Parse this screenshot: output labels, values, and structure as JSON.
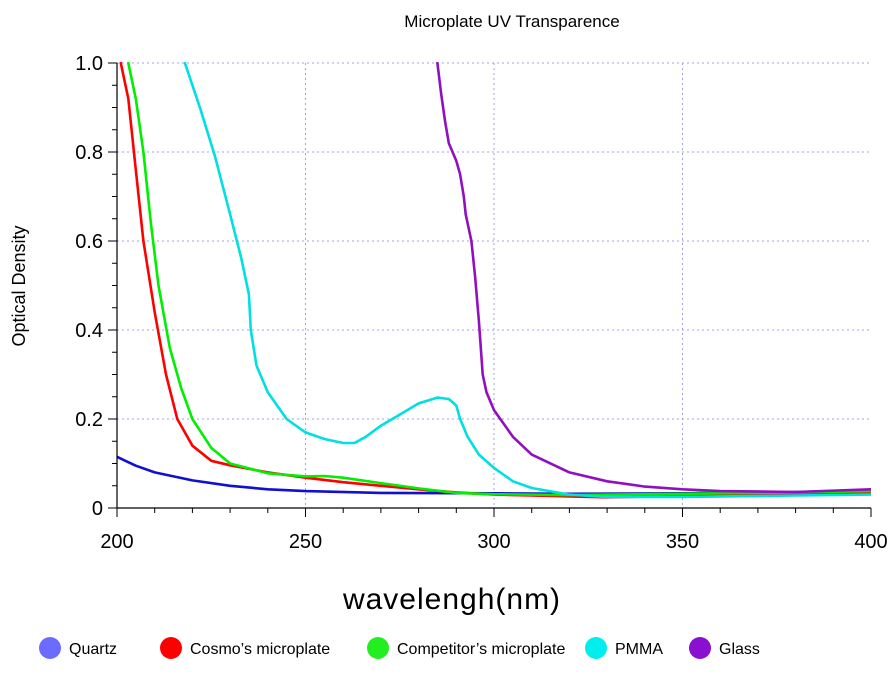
{
  "chart_data": {
    "type": "line",
    "title": "Microplate UV Transparence",
    "xlabel": "wavelengh(nm)",
    "ylabel": "Optical Density",
    "xlim": [
      200,
      400
    ],
    "ylim": [
      0,
      1.0
    ],
    "x_ticks": [
      200,
      250,
      300,
      350,
      400
    ],
    "x_tick_labels": [
      "200",
      "250",
      "300",
      "350",
      "400"
    ],
    "y_ticks": [
      0,
      0.2,
      0.4,
      0.6,
      0.8,
      1.0
    ],
    "y_tick_labels": [
      "0",
      "0.2",
      "0.4",
      "0.6",
      "0.8",
      "1.0"
    ],
    "grid": true,
    "legend_position": "bottom",
    "series": [
      {
        "name": "Quartz",
        "color": "#1010d0",
        "marker_color": "#6b6bff",
        "x": [
          200,
          205,
          210,
          220,
          230,
          240,
          250,
          270,
          300,
          320,
          350,
          380,
          400
        ],
        "y": [
          0.115,
          0.095,
          0.08,
          0.062,
          0.05,
          0.042,
          0.038,
          0.034,
          0.033,
          0.032,
          0.033,
          0.036,
          0.04
        ]
      },
      {
        "name": "Cosmo’s microplate",
        "color": "#ff0000",
        "marker_color": "#ff0000",
        "x": [
          201,
          203,
          205,
          207,
          210,
          213,
          216,
          220,
          225,
          230,
          240,
          250,
          260,
          270,
          280,
          290,
          300,
          310,
          320,
          330,
          350,
          380,
          400
        ],
        "y": [
          1.0,
          0.92,
          0.76,
          0.6,
          0.44,
          0.3,
          0.2,
          0.14,
          0.106,
          0.096,
          0.08,
          0.068,
          0.058,
          0.05,
          0.042,
          0.035,
          0.03,
          0.028,
          0.026,
          0.024,
          0.027,
          0.032,
          0.035
        ]
      },
      {
        "name": "Competitor’s microplate",
        "color": "#00ee00",
        "marker_color": "#22ee22",
        "x": [
          203,
          205,
          207,
          209,
          211,
          214,
          217,
          220,
          225,
          230,
          240,
          250,
          255,
          260,
          270,
          280,
          290,
          300,
          320,
          350,
          380,
          400
        ],
        "y": [
          1.0,
          0.92,
          0.8,
          0.64,
          0.5,
          0.36,
          0.27,
          0.2,
          0.135,
          0.1,
          0.078,
          0.071,
          0.072,
          0.068,
          0.056,
          0.044,
          0.034,
          0.031,
          0.029,
          0.032,
          0.035,
          0.038
        ]
      },
      {
        "name": "PMMA",
        "color": "#00e0e0",
        "marker_color": "#00eeee",
        "x": [
          218,
          222,
          226,
          230,
          233,
          235,
          235.5,
          237,
          240,
          245,
          250,
          255,
          260,
          263,
          266,
          270,
          275,
          280,
          285,
          288,
          290,
          291,
          293,
          296,
          300,
          305,
          310,
          320,
          330,
          350,
          380,
          400
        ],
        "y": [
          1.0,
          0.9,
          0.79,
          0.66,
          0.56,
          0.48,
          0.4,
          0.32,
          0.26,
          0.2,
          0.17,
          0.155,
          0.146,
          0.146,
          0.16,
          0.185,
          0.21,
          0.235,
          0.248,
          0.245,
          0.23,
          0.2,
          0.16,
          0.12,
          0.09,
          0.06,
          0.045,
          0.03,
          0.025,
          0.025,
          0.028,
          0.03
        ]
      },
      {
        "name": "Glass",
        "color": "#9010c0",
        "marker_color": "#8a10d0",
        "x": [
          285,
          286,
          287,
          288,
          290,
          291,
          292,
          292.5,
          294,
          295,
          296,
          297,
          298,
          300,
          305,
          310,
          320,
          330,
          340,
          350,
          360,
          380,
          400
        ],
        "y": [
          1.0,
          0.93,
          0.87,
          0.82,
          0.78,
          0.75,
          0.7,
          0.66,
          0.6,
          0.52,
          0.42,
          0.3,
          0.26,
          0.22,
          0.16,
          0.12,
          0.08,
          0.06,
          0.048,
          0.042,
          0.038,
          0.036,
          0.042
        ]
      }
    ]
  }
}
